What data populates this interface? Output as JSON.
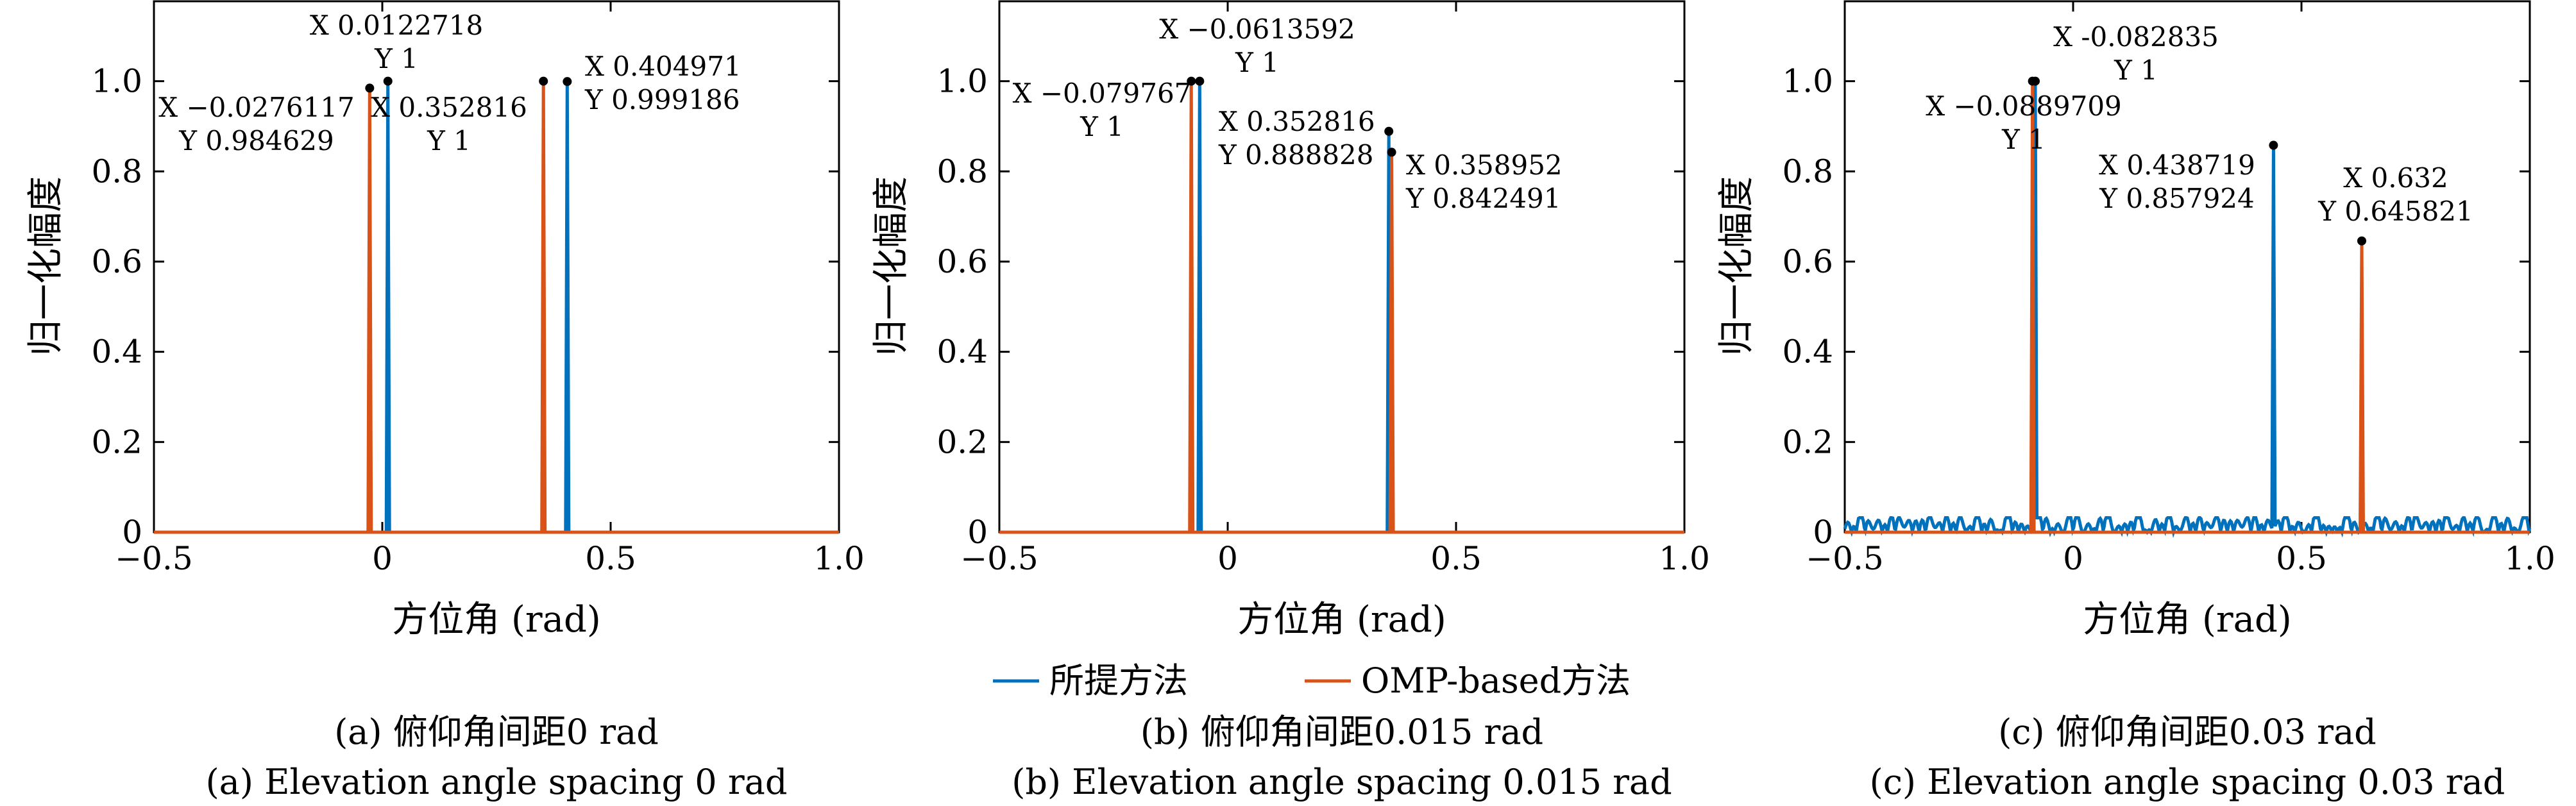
{
  "chart_data": [
    {
      "type": "line",
      "xlabel": "方位角 (rad)",
      "ylabel": "归一化幅度",
      "xlim": [
        -0.5,
        1.0
      ],
      "ylim": [
        0,
        1.18
      ],
      "xticks": [
        -0.5,
        0,
        0.5,
        1.0
      ],
      "xtick_labels": [
        "−0.5",
        "0",
        "0.5",
        "1.0"
      ],
      "yticks": [
        0,
        0.2,
        0.4,
        0.6,
        0.8,
        1.0
      ],
      "ytick_labels": [
        "0",
        "0.2",
        "0.4",
        "0.6",
        "0.8",
        "1.0"
      ],
      "caption_cn": "(a) 俯仰角间距0 rad",
      "caption_en": "(a) Elevation angle spacing 0 rad",
      "series": [
        {
          "name": "所提方法",
          "color": "#0072BD",
          "peaks": [
            {
              "x": 0.0122718,
              "y": 1
            },
            {
              "x": 0.404971,
              "y": 0.999186
            }
          ],
          "noise": false
        },
        {
          "name": "OMP-based方法",
          "color": "#D95319",
          "peaks": [
            {
              "x": -0.0276117,
              "y": 0.984629
            },
            {
              "x": 0.352816,
              "y": 1
            }
          ],
          "noise": false
        }
      ],
      "annotations": [
        {
          "x": 0.0122718,
          "y": 1,
          "xtext": "X 0.0122718",
          "ytext": "Y 1"
        },
        {
          "x": 0.404971,
          "y": 0.999186,
          "xtext": "X 0.404971",
          "ytext": "Y 0.999186"
        },
        {
          "x": -0.0276117,
          "y": 0.984629,
          "xtext": "X −0.0276117",
          "ytext": "Y 0.984629"
        },
        {
          "x": 0.352816,
          "y": 1,
          "xtext": "X 0.352816",
          "ytext": "Y 1"
        }
      ]
    },
    {
      "type": "line",
      "xlabel": "方位角 (rad)",
      "ylabel": "归一化幅度",
      "xlim": [
        -0.5,
        1.0
      ],
      "ylim": [
        0,
        1.18
      ],
      "xticks": [
        -0.5,
        0,
        0.5,
        1.0
      ],
      "xtick_labels": [
        "−0.5",
        "0",
        "0.5",
        "1.0"
      ],
      "yticks": [
        0,
        0.2,
        0.4,
        0.6,
        0.8,
        1.0
      ],
      "ytick_labels": [
        "0",
        "0.2",
        "0.4",
        "0.6",
        "0.8",
        "1.0"
      ],
      "caption_cn": "(b) 俯仰角间距0.015 rad",
      "caption_en": "(b) Elevation angle spacing 0.015 rad",
      "series": [
        {
          "name": "所提方法",
          "color": "#0072BD",
          "peaks": [
            {
              "x": -0.0613592,
              "y": 1
            },
            {
              "x": 0.352816,
              "y": 0.888828
            }
          ],
          "noise": false
        },
        {
          "name": "OMP-based方法",
          "color": "#D95319",
          "peaks": [
            {
              "x": -0.079767,
              "y": 1
            },
            {
              "x": 0.358952,
              "y": 0.842491
            }
          ],
          "noise": false
        }
      ],
      "annotations": [
        {
          "x": -0.0613592,
          "y": 1,
          "xtext": "X −0.0613592",
          "ytext": "Y 1"
        },
        {
          "x": -0.079767,
          "y": 1,
          "xtext": "X −0.079767",
          "ytext": "Y 1"
        },
        {
          "x": 0.352816,
          "y": 0.888828,
          "xtext": "X 0.352816",
          "ytext": "Y 0.888828"
        },
        {
          "x": 0.358952,
          "y": 0.842491,
          "xtext": "X 0.358952",
          "ytext": "Y 0.842491"
        }
      ]
    },
    {
      "type": "line",
      "xlabel": "方位角 (rad)",
      "ylabel": "归一化幅度",
      "xlim": [
        -0.5,
        1.0
      ],
      "ylim": [
        0,
        1.18
      ],
      "xticks": [
        -0.5,
        0,
        0.5,
        1.0
      ],
      "xtick_labels": [
        "−0.5",
        "0",
        "0.5",
        "1.0"
      ],
      "yticks": [
        0,
        0.2,
        0.4,
        0.6,
        0.8,
        1.0
      ],
      "ytick_labels": [
        "0",
        "0.2",
        "0.4",
        "0.6",
        "0.8",
        "1.0"
      ],
      "caption_cn": "(c) 俯仰角间距0.03 rad",
      "caption_en": "(c) Elevation angle spacing 0.03 rad",
      "series": [
        {
          "name": "所提方法",
          "color": "#0072BD",
          "peaks": [
            {
              "x": -0.082835,
              "y": 1
            },
            {
              "x": 0.438719,
              "y": 0.857924
            }
          ],
          "noise": true
        },
        {
          "name": "OMP-based方法",
          "color": "#D95319",
          "peaks": [
            {
              "x": -0.0889709,
              "y": 1
            },
            {
              "x": 0.632,
              "y": 0.645821
            }
          ],
          "noise": false
        }
      ],
      "annotations": [
        {
          "x": -0.082835,
          "y": 1,
          "xtext": "X -0.082835",
          "ytext": "Y 1"
        },
        {
          "x": -0.0889709,
          "y": 1,
          "xtext": "X −0.0889709",
          "ytext": "Y 1"
        },
        {
          "x": 0.438719,
          "y": 0.857924,
          "xtext": "X 0.438719",
          "ytext": "Y 0.857924"
        },
        {
          "x": 0.632,
          "y": 0.645821,
          "xtext": "X 0.632",
          "ytext": "Y 0.645821"
        }
      ]
    }
  ],
  "legend": {
    "items": [
      {
        "label": "所提方法",
        "color": "#0072BD"
      },
      {
        "label": "OMP-based方法",
        "color": "#D95319"
      }
    ]
  }
}
